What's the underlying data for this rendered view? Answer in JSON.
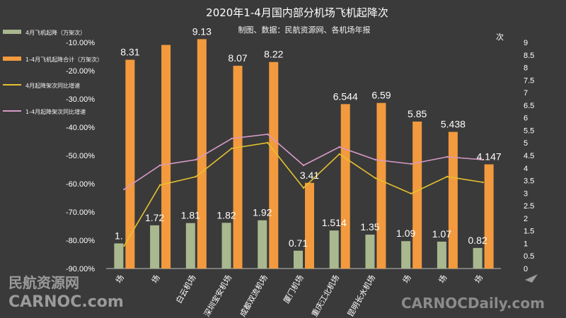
{
  "chart_data": {
    "type": "bar",
    "title": "2020年1-4月国内部分机场飞机起降次",
    "subtitle": "制图、数据：民航资源网、各机场年报",
    "y2_unit": "次",
    "categories": [
      "上海浦东机场",
      "北京首都机场",
      "广州白云机场",
      "深圳宝安机场",
      "成都双流机场",
      "厦门机场",
      "重庆江北机场",
      "昆明长水机场",
      "西安咸阳机场",
      "杭州萧山机场",
      "南京禄口机场"
    ],
    "category_labels_visible": [
      "场",
      "场",
      "白云机场",
      "深圳宝安机场",
      "成都双流机场",
      "厦门机场",
      "重庆江北机场",
      "昆明长水机场",
      "场",
      "场",
      "场"
    ],
    "series": [
      {
        "name": "4月飞机起降（万架次）",
        "kind": "bar",
        "axis": "right",
        "color": "#a9b88f",
        "values": [
          1.0,
          1.72,
          1.81,
          1.82,
          1.92,
          0.71,
          1.514,
          1.35,
          1.09,
          1.07,
          0.82
        ],
        "labels": [
          "1.",
          "1.72",
          "1.81",
          "1.82",
          "1.92",
          "0.71",
          "1.514",
          "1.35",
          "1.09",
          "1.07",
          "0.82"
        ]
      },
      {
        "name": "1-4月飞机起降合计（万架次）",
        "kind": "bar",
        "axis": "right",
        "color": "#f39a3e",
        "values": [
          8.31,
          8.9,
          9.13,
          8.07,
          8.22,
          3.41,
          6.544,
          6.59,
          5.85,
          5.438,
          4.147
        ],
        "labels": [
          "8.31",
          "",
          "9.13",
          "8.07",
          "8.22",
          "3.41",
          "6.544",
          "6.59",
          "5.85",
          "5.438",
          "4.147"
        ]
      },
      {
        "name": "4月起降架次同比增速",
        "kind": "line",
        "axis": "left",
        "color": "#e6c12e",
        "values": [
          -82.0,
          -60.5,
          -57.5,
          -47.5,
          -45.5,
          -61.5,
          -49.5,
          -58.0,
          -63.5,
          -57.5,
          -59.5
        ]
      },
      {
        "name": "1-4月起降架次同比增速",
        "kind": "line",
        "axis": "left",
        "color": "#d79ac7",
        "values": [
          -62.0,
          -53.5,
          -51.5,
          -44.0,
          -42.5,
          -53.5,
          -47.0,
          -51.5,
          -53.0,
          -50.5,
          -51.5
        ]
      }
    ],
    "y_left": {
      "min": -90,
      "max": -10,
      "step": 10,
      "ticks": [
        "-10.00%",
        "-20.00%",
        "-30.00%",
        "-40.00%",
        "-50.00%",
        "-60.00%",
        "-70.00%",
        "-80.00%",
        "-90.00%"
      ]
    },
    "y_right": {
      "min": 0,
      "max": 9,
      "step": 0.5,
      "ticks": [
        "0",
        "0.5",
        "1",
        "1.5",
        "2",
        "2.5",
        "3",
        "3.5",
        "4",
        "4.5",
        "5",
        "5.5",
        "6",
        "6.5",
        "7",
        "7.5",
        "8",
        "8.5",
        "9"
      ]
    },
    "legend_placement": "left",
    "grid": false
  },
  "watermark": {
    "cn": "民航资源网",
    "en": "CARNOC.com",
    "right": "CARNOCDaily.com"
  }
}
